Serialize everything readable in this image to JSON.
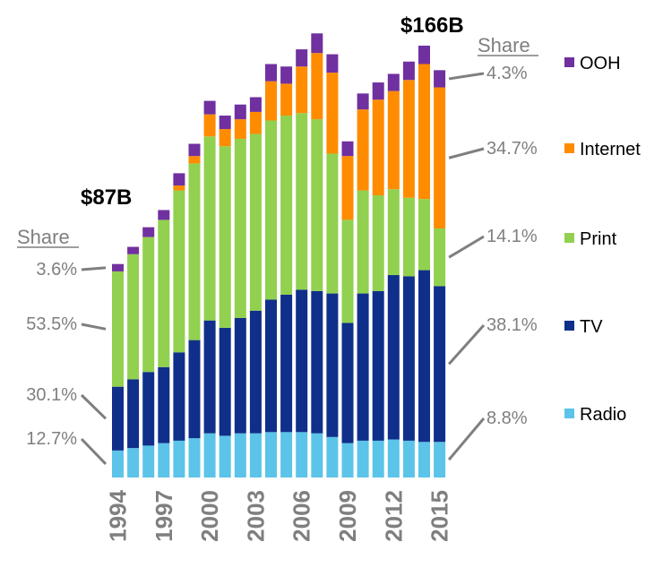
{
  "chart_data": {
    "type": "bar",
    "stacked": true,
    "title": "",
    "xlabel": "",
    "ylabel": "",
    "ylim": [
      0,
      180
    ],
    "grid": false,
    "x": [
      1994,
      1995,
      1996,
      1997,
      1998,
      1999,
      2000,
      2001,
      2002,
      2003,
      2004,
      2005,
      2006,
      2007,
      2008,
      2009,
      2010,
      2011,
      2012,
      2013,
      2014,
      2015
    ],
    "tick_labels": [
      "1994",
      "1997",
      "2000",
      "2003",
      "2006",
      "2009",
      "2012",
      "2015"
    ],
    "tick_years": [
      1994,
      1997,
      2000,
      2003,
      2006,
      2009,
      2012,
      2015
    ],
    "series": [
      {
        "name": "Radio",
        "color": "#5bc4e8",
        "values": [
          11,
          12,
          13,
          14,
          15,
          16,
          18,
          17,
          18,
          18,
          18.5,
          18.5,
          18.5,
          18,
          16.5,
          14,
          15,
          15,
          15.5,
          15,
          14.5,
          14.5
        ]
      },
      {
        "name": "TV",
        "color": "#0f2f8a",
        "values": [
          26,
          28,
          30,
          31,
          36,
          40,
          46,
          44,
          47,
          50,
          54,
          56,
          58,
          58,
          58.5,
          49,
          60,
          61,
          67,
          67,
          70,
          63.5
        ]
      },
      {
        "name": "Print",
        "color": "#92d050",
        "values": [
          47,
          51,
          55,
          60,
          66,
          72,
          75,
          74,
          73,
          72,
          73,
          73,
          72,
          70,
          57,
          42,
          42,
          39,
          35,
          32,
          29,
          23.5
        ]
      },
      {
        "name": "Internet",
        "color": "#ff8c00",
        "values": [
          0,
          0,
          0,
          0,
          2,
          3,
          9,
          7,
          8,
          9,
          16,
          13,
          19,
          27,
          33,
          26,
          33,
          39,
          40,
          48,
          55,
          57.5
        ]
      },
      {
        "name": "OOH",
        "color": "#7030a0",
        "values": [
          3,
          3,
          4,
          4,
          5,
          5,
          5.5,
          5.5,
          6,
          6,
          7,
          7,
          7,
          8,
          7.5,
          6,
          6.5,
          7,
          7,
          7.5,
          7.5,
          7
        ]
      }
    ],
    "totals": [
      {
        "label": "$87B",
        "year": 1994
      },
      {
        "label": "$166B",
        "year": 2015
      }
    ],
    "left_share": {
      "header": "Share",
      "items": [
        {
          "series": "OOH",
          "label": "3.6%"
        },
        {
          "series": "Print",
          "label": "53.5%"
        },
        {
          "series": "TV",
          "label": "30.1%"
        },
        {
          "series": "Radio",
          "label": "12.7%"
        }
      ]
    },
    "right_share": {
      "header": "Share",
      "items": [
        {
          "series": "OOH",
          "label": "4.3%"
        },
        {
          "series": "Internet",
          "label": "34.7%"
        },
        {
          "series": "Print",
          "label": "14.1%"
        },
        {
          "series": "TV",
          "label": "38.1%"
        },
        {
          "series": "Radio",
          "label": "8.8%"
        }
      ]
    },
    "legend": {
      "placement": "right",
      "items": [
        {
          "label": "OOH",
          "color": "#7030a0"
        },
        {
          "label": "Internet",
          "color": "#ff8c00"
        },
        {
          "label": "Print",
          "color": "#92d050"
        },
        {
          "label": "TV",
          "color": "#0f2f8a"
        },
        {
          "label": "Radio",
          "color": "#5bc4e8"
        }
      ]
    }
  }
}
